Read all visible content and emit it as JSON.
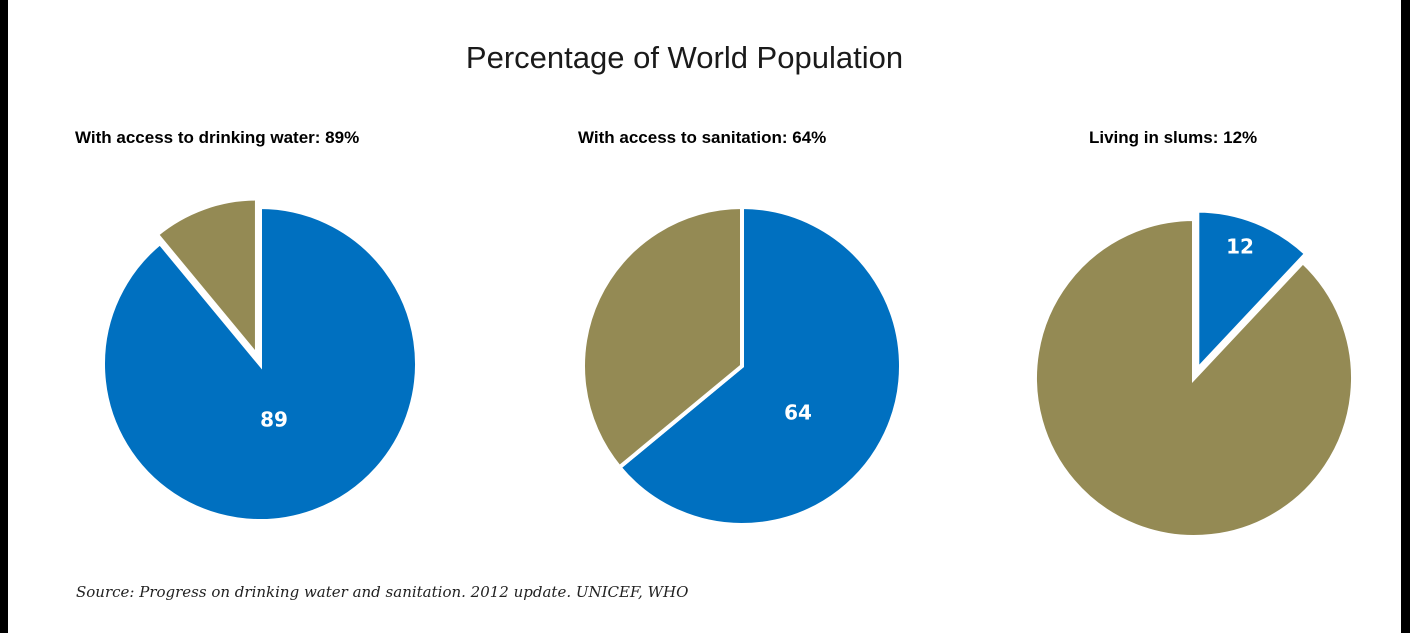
{
  "title": "Percentage of World Population",
  "source": "Source: Progress on drinking water and sanitation. 2012 update. UNICEF, WHO",
  "colors": {
    "primary": "#0070c0",
    "remainder": "#948a54"
  },
  "chart_data": [
    {
      "type": "pie",
      "title": "With access to drinking water: 89%",
      "values": [
        89,
        11
      ],
      "labels": [
        "89",
        ""
      ]
    },
    {
      "type": "pie",
      "title": "With access to sanitation: 64%",
      "values": [
        64,
        36
      ],
      "labels": [
        "64",
        ""
      ]
    },
    {
      "type": "pie",
      "title": "Living in slums: 12%",
      "values": [
        12,
        88
      ],
      "labels": [
        "12",
        ""
      ]
    }
  ]
}
